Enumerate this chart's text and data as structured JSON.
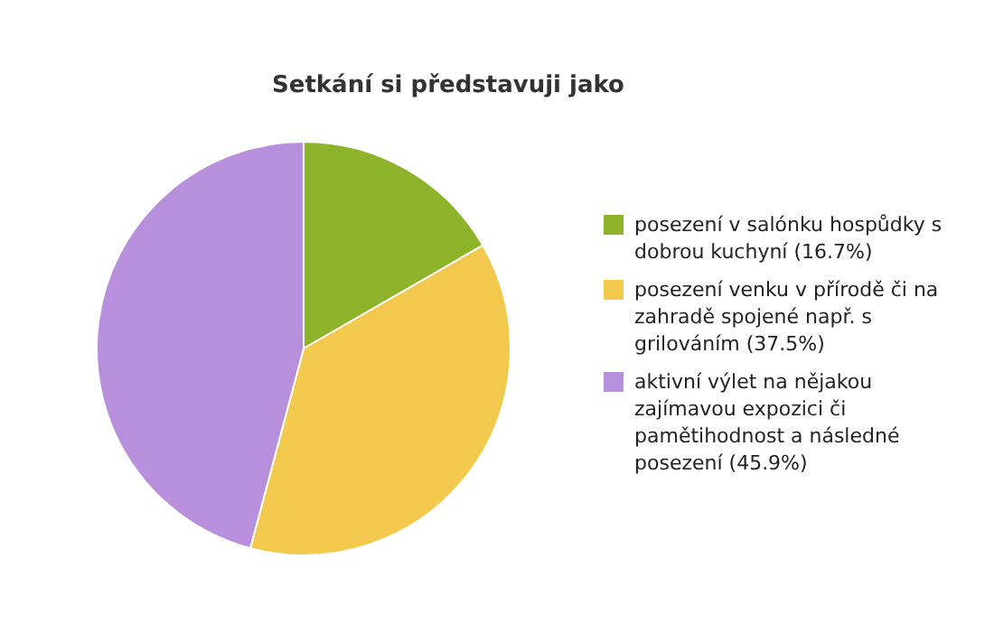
{
  "chart_data": {
    "type": "pie",
    "title": "Setkání si představuji jako",
    "categories": [
      "posezení v salónku hospůdky s dobrou kuchyní (16.7%)",
      "posezení venku v přírodě či na zahradě spojené např. s grilováním (37.5%)",
      "aktivní výlet na nějakou zajímavou expozici či pamětihodnost a následné posezení (45.9%)"
    ],
    "values": [
      16.7,
      37.5,
      45.9
    ],
    "colors": [
      "#8db32b",
      "#f2c94c",
      "#b88fdc"
    ],
    "legend": "right"
  }
}
